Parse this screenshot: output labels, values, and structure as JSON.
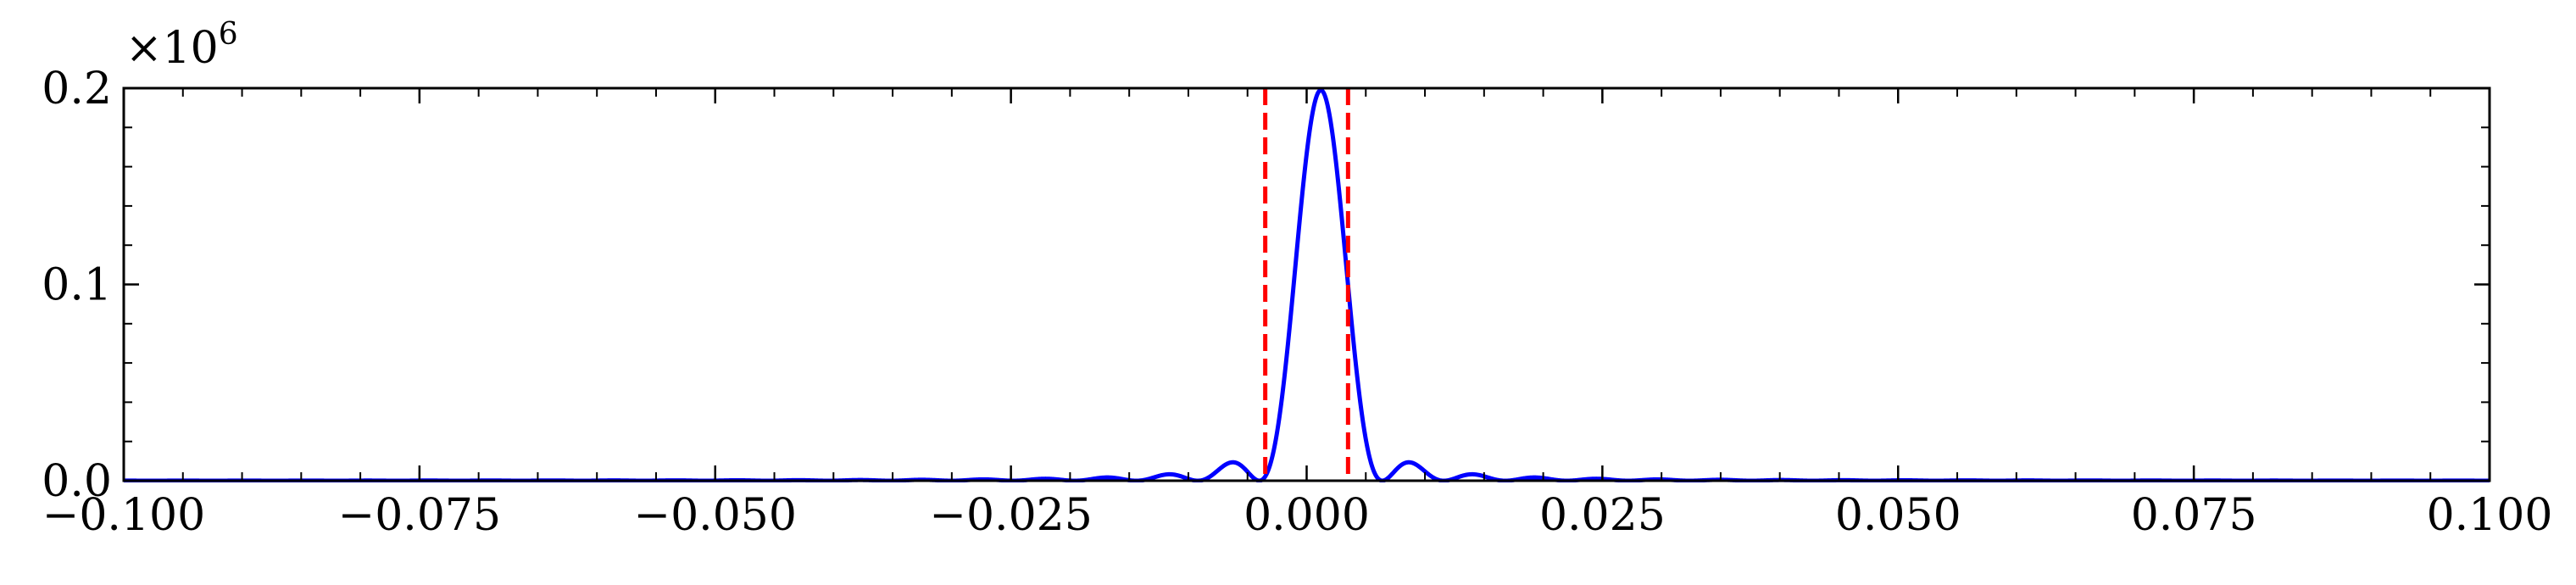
{
  "chart_data": {
    "type": "line",
    "title": "",
    "xlabel": "",
    "ylabel": "",
    "xlim": [
      -0.1,
      0.1
    ],
    "ylim": [
      0.0,
      0.2
    ],
    "y_multiplier_label": "×10",
    "y_multiplier_exponent": "6",
    "xticks": [
      -0.1,
      -0.075,
      -0.05,
      -0.025,
      0.0,
      0.025,
      0.05,
      0.075,
      0.1
    ],
    "xtick_labels": [
      "−0.100",
      "−0.075",
      "−0.050",
      "−0.025",
      "0.000",
      "0.025",
      "0.050",
      "0.075",
      "0.100"
    ],
    "yticks": [
      0.0,
      0.1,
      0.2
    ],
    "ytick_labels": [
      "0.0",
      "0.1",
      "0.2"
    ],
    "grid": false,
    "series": [
      {
        "color": "#0000ff",
        "style": "solid",
        "function": "sinc-squared pattern",
        "peak_x": 0.0012,
        "peak_y": 0.199,
        "first_zero_spacing": 0.0052,
        "x_start": -0.1,
        "x_end": 0.1,
        "samples": 4000
      }
    ],
    "vertical_lines": [
      {
        "x": -0.0035,
        "color": "#ff0000",
        "style": "dashed"
      },
      {
        "x": 0.0035,
        "color": "#ff0000",
        "style": "dashed"
      }
    ]
  }
}
